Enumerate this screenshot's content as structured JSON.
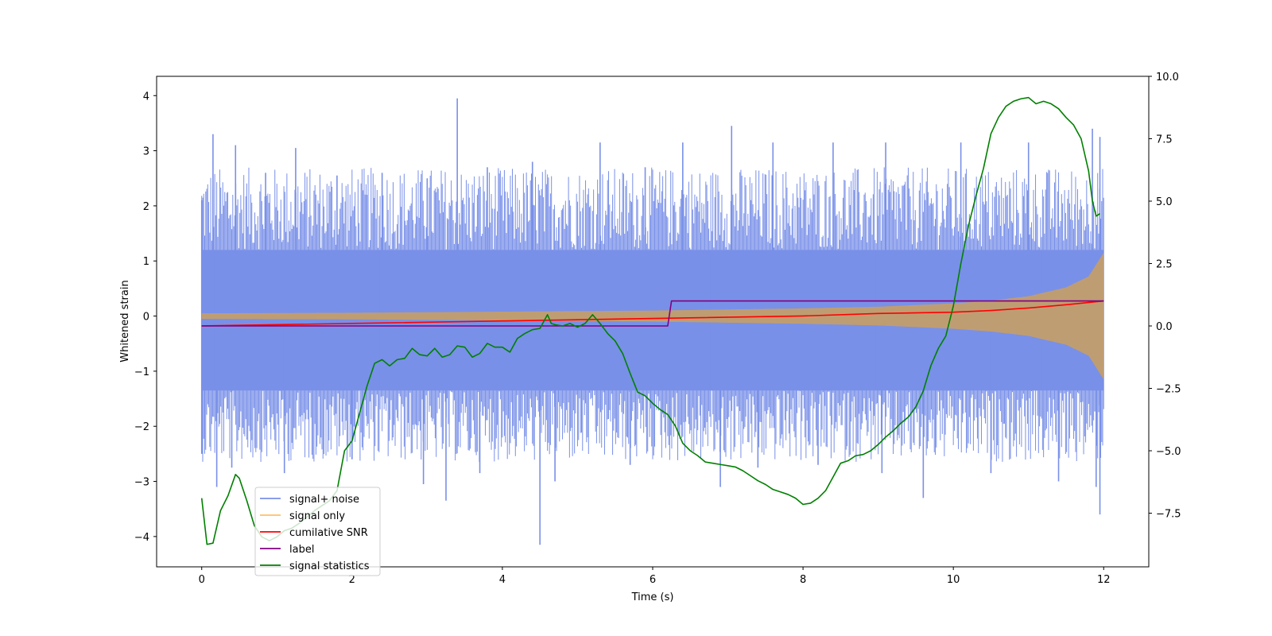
{
  "chart_data": {
    "type": "line",
    "title": "",
    "xlabel": "Time (s)",
    "ylabel": "Whitened strain",
    "y2label": "",
    "xlim": [
      -0.6,
      12.6
    ],
    "ylim": [
      -4.55,
      4.35
    ],
    "y2lim": [
      -9.65,
      10.0
    ],
    "xticks": [
      0,
      2,
      4,
      6,
      8,
      10,
      12
    ],
    "yticks": [
      -4,
      -3,
      -2,
      -1,
      0,
      1,
      2,
      3,
      4
    ],
    "y2ticks": [
      "-7.5",
      "-5.0",
      "-2.5",
      "0.0",
      "2.5",
      "5.0",
      "7.5",
      "10.0"
    ],
    "grid": false,
    "legend_position": "lower-left",
    "series": [
      {
        "name": "signal+ noise",
        "color": "#7990e8",
        "axis": "left",
        "kind": "noise-band",
        "x_range": [
          0,
          12
        ],
        "band_upper": 1.2,
        "band_lower": -1.35,
        "peaks_upper": [
          [
            0.0,
            2.1
          ],
          [
            0.15,
            3.3
          ],
          [
            0.45,
            3.1
          ],
          [
            0.85,
            2.6
          ],
          [
            1.25,
            3.05
          ],
          [
            1.8,
            2.55
          ],
          [
            2.4,
            2.6
          ],
          [
            3.0,
            2.5
          ],
          [
            3.4,
            3.95
          ],
          [
            3.8,
            2.7
          ],
          [
            4.4,
            2.8
          ],
          [
            5.3,
            3.15
          ],
          [
            5.9,
            2.7
          ],
          [
            6.4,
            3.15
          ],
          [
            7.05,
            3.45
          ],
          [
            7.6,
            3.15
          ],
          [
            8.4,
            3.15
          ],
          [
            9.1,
            3.15
          ],
          [
            10.1,
            3.15
          ],
          [
            11.0,
            3.15
          ],
          [
            11.85,
            3.4
          ],
          [
            11.95,
            3.25
          ]
        ],
        "peaks_lower": [
          [
            0.0,
            -2.5
          ],
          [
            0.2,
            -3.1
          ],
          [
            0.4,
            -2.75
          ],
          [
            1.1,
            -2.85
          ],
          [
            2.0,
            -2.6
          ],
          [
            2.95,
            -3.05
          ],
          [
            3.25,
            -3.35
          ],
          [
            3.7,
            -2.85
          ],
          [
            4.5,
            -4.15
          ],
          [
            4.7,
            -3.0
          ],
          [
            5.7,
            -2.7
          ],
          [
            6.9,
            -3.1
          ],
          [
            7.4,
            -2.75
          ],
          [
            8.2,
            -2.7
          ],
          [
            9.05,
            -2.85
          ],
          [
            9.6,
            -3.3
          ],
          [
            10.5,
            -2.85
          ],
          [
            11.4,
            -3.0
          ],
          [
            11.9,
            -3.1
          ],
          [
            11.95,
            -3.6
          ]
        ]
      },
      {
        "name": "signal only",
        "color": "#ffbf66",
        "axis": "left",
        "kind": "chirp-envelope",
        "x": [
          0,
          1,
          2,
          3,
          4,
          5,
          6,
          7,
          8,
          9,
          10,
          10.5,
          11,
          11.5,
          11.8,
          12
        ],
        "amplitude": [
          0.05,
          0.055,
          0.06,
          0.07,
          0.08,
          0.09,
          0.1,
          0.12,
          0.14,
          0.17,
          0.23,
          0.28,
          0.36,
          0.52,
          0.72,
          1.15
        ]
      },
      {
        "name": "cumilative SNR",
        "color": "#ff0000",
        "axis": "right",
        "x": [
          0,
          2,
          4,
          6,
          8,
          9,
          10,
          10.5,
          11,
          11.5,
          12
        ],
        "y": [
          0.0,
          0.1,
          0.2,
          0.3,
          0.4,
          0.5,
          0.55,
          0.62,
          0.72,
          0.85,
          1.0
        ]
      },
      {
        "name": "label",
        "color": "#800080",
        "axis": "right",
        "x": [
          0,
          6.2,
          6.25,
          12
        ],
        "y": [
          0.0,
          0.0,
          1.0,
          1.0
        ]
      },
      {
        "name": "signal statistics",
        "color": "#008000",
        "axis": "right",
        "x": [
          0,
          0.07,
          0.15,
          0.25,
          0.35,
          0.45,
          0.5,
          0.6,
          0.7,
          0.8,
          0.9,
          1.0,
          1.1,
          1.2,
          1.3,
          1.4,
          1.5,
          1.6,
          1.7,
          1.8,
          1.9,
          2.0,
          2.1,
          2.2,
          2.3,
          2.4,
          2.5,
          2.6,
          2.7,
          2.8,
          2.9,
          3.0,
          3.1,
          3.2,
          3.3,
          3.4,
          3.5,
          3.6,
          3.7,
          3.8,
          3.9,
          4.0,
          4.1,
          4.2,
          4.3,
          4.4,
          4.5,
          4.6,
          4.65,
          4.7,
          4.8,
          4.9,
          5.0,
          5.1,
          5.2,
          5.3,
          5.4,
          5.5,
          5.6,
          5.7,
          5.8,
          5.9,
          6.0,
          6.1,
          6.2,
          6.3,
          6.4,
          6.5,
          6.6,
          6.7,
          6.8,
          6.9,
          7.0,
          7.1,
          7.2,
          7.3,
          7.4,
          7.5,
          7.6,
          7.7,
          7.8,
          7.9,
          8.0,
          8.1,
          8.2,
          8.3,
          8.4,
          8.5,
          8.6,
          8.7,
          8.8,
          8.9,
          9.0,
          9.1,
          9.2,
          9.3,
          9.4,
          9.5,
          9.6,
          9.7,
          9.8,
          9.9,
          10.0,
          10.1,
          10.2,
          10.3,
          10.4,
          10.5,
          10.6,
          10.7,
          10.8,
          10.9,
          11.0,
          11.1,
          11.2,
          11.3,
          11.4,
          11.5,
          11.6,
          11.7,
          11.8,
          11.85,
          11.9,
          11.95
        ],
        "y": [
          -6.9,
          -8.75,
          -8.7,
          -7.4,
          -6.8,
          -5.95,
          -6.1,
          -7.0,
          -8.0,
          -8.45,
          -8.6,
          -8.45,
          -8.2,
          -8.1,
          -7.9,
          -7.65,
          -7.4,
          -7.2,
          -7.0,
          -6.6,
          -5.0,
          -4.6,
          -3.5,
          -2.4,
          -1.5,
          -1.35,
          -1.6,
          -1.35,
          -1.3,
          -0.9,
          -1.15,
          -1.2,
          -0.9,
          -1.25,
          -1.15,
          -0.8,
          -0.85,
          -1.25,
          -1.1,
          -0.7,
          -0.85,
          -0.85,
          -1.05,
          -0.5,
          -0.3,
          -0.15,
          -0.1,
          0.45,
          0.1,
          0.05,
          0.0,
          0.1,
          -0.05,
          0.1,
          0.45,
          0.1,
          -0.3,
          -0.6,
          -1.1,
          -1.9,
          -2.65,
          -2.8,
          -3.1,
          -3.35,
          -3.55,
          -4.0,
          -4.7,
          -5.0,
          -5.2,
          -5.45,
          -5.5,
          -5.55,
          -5.6,
          -5.65,
          -5.8,
          -6.0,
          -6.2,
          -6.35,
          -6.55,
          -6.65,
          -6.75,
          -6.9,
          -7.15,
          -7.1,
          -6.9,
          -6.6,
          -6.05,
          -5.5,
          -5.4,
          -5.2,
          -5.15,
          -5.0,
          -4.75,
          -4.45,
          -4.2,
          -3.9,
          -3.65,
          -3.25,
          -2.6,
          -1.6,
          -0.9,
          -0.4,
          0.8,
          2.5,
          4.0,
          5.2,
          6.3,
          7.7,
          8.35,
          8.8,
          9.0,
          9.1,
          9.15,
          8.9,
          9.0,
          8.9,
          8.7,
          8.35,
          8.05,
          7.5,
          6.2,
          5.0,
          4.4,
          4.5
        ]
      }
    ]
  }
}
